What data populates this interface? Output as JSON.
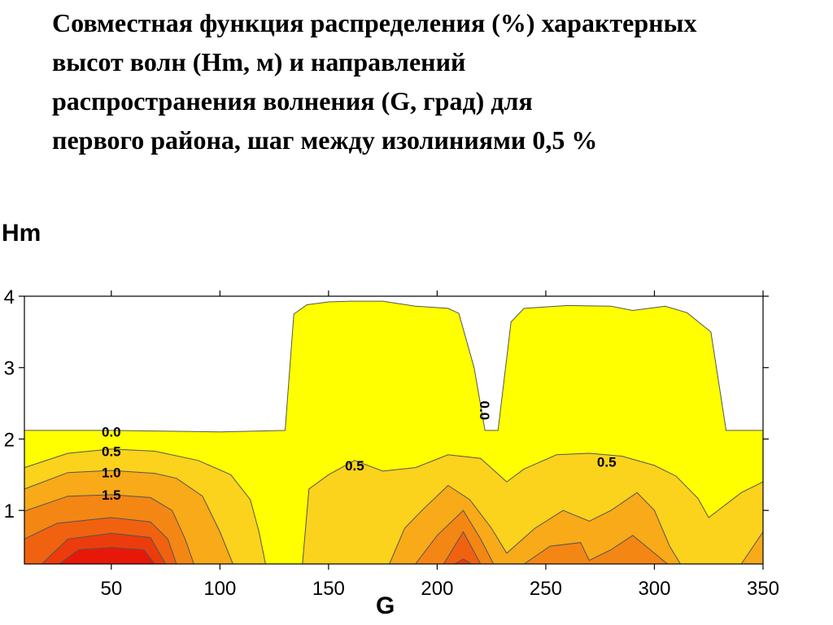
{
  "title_lines": [
    "Совместная функция распределения (%) характерных",
    "высот волн (Hm, м) и направлений",
    "распространения волнения (G, град) для",
    "первого района, шаг между изолиниями 0,5 %"
  ],
  "chart_data": {
    "type": "contour",
    "title": "Совместная функция распределения (%) характерных высот волн (Hm, м) и направлений распространения волнения (G, град) для первого района, шаг между изолиниями 0,5 %",
    "xlabel": "G",
    "ylabel": "Hm",
    "xlim": [
      10,
      350
    ],
    "ylim": [
      0.25,
      4.0
    ],
    "x_ticks": [
      50,
      100,
      150,
      200,
      250,
      300,
      350
    ],
    "y_ticks": [
      1,
      2,
      3,
      4
    ],
    "contour_step": 0.5,
    "contour_labels": [
      {
        "value": "0.0",
        "x": 50,
        "y": 2.1
      },
      {
        "value": "0.5",
        "x": 50,
        "y": 1.83
      },
      {
        "value": "1.0",
        "x": 50,
        "y": 1.53
      },
      {
        "value": "1.5",
        "x": 50,
        "y": 1.22
      },
      {
        "value": "0.5",
        "x": 162,
        "y": 1.63
      },
      {
        "value": "0.0",
        "x": 222,
        "y": 2.4
      },
      {
        "value": "0.5",
        "x": 278,
        "y": 1.68
      }
    ],
    "levels": [
      {
        "level": 0.0,
        "color": "#ffff00",
        "outline": [
          [
            10,
            2.12
          ],
          [
            50,
            2.12
          ],
          [
            100,
            2.1
          ],
          [
            130,
            2.12
          ],
          [
            134,
            3.75
          ],
          [
            140,
            3.88
          ],
          [
            150,
            3.92
          ],
          [
            160,
            3.93
          ],
          [
            175,
            3.93
          ],
          [
            190,
            3.86
          ],
          [
            196,
            3.85
          ],
          [
            205,
            3.83
          ],
          [
            210,
            3.76
          ],
          [
            217,
            3.0
          ],
          [
            222,
            2.12
          ],
          [
            228,
            2.12
          ],
          [
            234,
            3.64
          ],
          [
            240,
            3.83
          ],
          [
            260,
            3.87
          ],
          [
            280,
            3.86
          ],
          [
            290,
            3.8
          ],
          [
            305,
            3.86
          ],
          [
            315,
            3.77
          ],
          [
            326,
            3.5
          ],
          [
            333,
            2.12
          ],
          [
            350,
            2.12
          ],
          [
            350,
            0.25
          ],
          [
            10,
            0.25
          ]
        ]
      },
      {
        "level": 0.5,
        "color": "#fbd21c",
        "outlines": [
          [
            [
              10,
              1.6
            ],
            [
              30,
              1.8
            ],
            [
              50,
              1.86
            ],
            [
              70,
              1.83
            ],
            [
              90,
              1.7
            ],
            [
              105,
              1.5
            ],
            [
              114,
              1.15
            ],
            [
              118,
              0.7
            ],
            [
              121,
              0.25
            ],
            [
              10,
              0.25
            ]
          ],
          [
            [
              138,
              0.25
            ],
            [
              141,
              1.3
            ],
            [
              150,
              1.5
            ],
            [
              162,
              1.7
            ],
            [
              175,
              1.55
            ],
            [
              190,
              1.6
            ],
            [
              205,
              1.78
            ],
            [
              220,
              1.73
            ],
            [
              232,
              1.4
            ],
            [
              240,
              1.58
            ],
            [
              255,
              1.78
            ],
            [
              270,
              1.8
            ],
            [
              285,
              1.76
            ],
            [
              300,
              1.63
            ],
            [
              310,
              1.48
            ],
            [
              320,
              1.17
            ],
            [
              325,
              0.9
            ],
            [
              340,
              1.25
            ],
            [
              350,
              1.4
            ],
            [
              350,
              0.25
            ]
          ]
        ]
      },
      {
        "level": 1.0,
        "color": "#f8aa18",
        "outlines": [
          [
            [
              10,
              1.3
            ],
            [
              30,
              1.53
            ],
            [
              50,
              1.56
            ],
            [
              70,
              1.52
            ],
            [
              80,
              1.45
            ],
            [
              92,
              1.2
            ],
            [
              100,
              0.7
            ],
            [
              106,
              0.25
            ],
            [
              10,
              0.25
            ]
          ],
          [
            [
              178,
              0.25
            ],
            [
              185,
              0.75
            ],
            [
              193,
              1.0
            ],
            [
              205,
              1.35
            ],
            [
              215,
              1.15
            ],
            [
              225,
              0.75
            ],
            [
              232,
              0.4
            ],
            [
              245,
              0.75
            ],
            [
              258,
              1.0
            ],
            [
              270,
              0.85
            ],
            [
              280,
              1.0
            ],
            [
              292,
              1.25
            ],
            [
              300,
              1.0
            ],
            [
              307,
              0.5
            ],
            [
              312,
              0.25
            ]
          ],
          [
            [
              340,
              0.25
            ],
            [
              350,
              0.7
            ],
            [
              350,
              0.25
            ]
          ]
        ]
      },
      {
        "level": 1.5,
        "color": "#f48614",
        "outlines": [
          [
            [
              10,
              0.99
            ],
            [
              30,
              1.2
            ],
            [
              50,
              1.22
            ],
            [
              68,
              1.18
            ],
            [
              78,
              1.0
            ],
            [
              84,
              0.6
            ],
            [
              88,
              0.25
            ],
            [
              10,
              0.25
            ]
          ],
          [
            [
              190,
              0.25
            ],
            [
              200,
              0.65
            ],
            [
              212,
              1.0
            ],
            [
              220,
              0.6
            ],
            [
              226,
              0.25
            ]
          ],
          [
            [
              240,
              0.25
            ],
            [
              252,
              0.5
            ],
            [
              266,
              0.55
            ],
            [
              270,
              0.3
            ],
            [
              280,
              0.45
            ],
            [
              290,
              0.65
            ],
            [
              300,
              0.4
            ],
            [
              306,
              0.25
            ]
          ]
        ]
      },
      {
        "level": 2.0,
        "color": "#f06210",
        "outlines": [
          [
            [
              10,
              0.6
            ],
            [
              25,
              0.82
            ],
            [
              50,
              0.9
            ],
            [
              68,
              0.84
            ],
            [
              76,
              0.6
            ],
            [
              80,
              0.25
            ],
            [
              10,
              0.25
            ]
          ],
          [
            [
              203,
              0.25
            ],
            [
              212,
              0.7
            ],
            [
              220,
              0.25
            ]
          ]
        ]
      },
      {
        "level": 2.5,
        "color": "#ec3c0c",
        "outlines": [
          [
            [
              18,
              0.25
            ],
            [
              30,
              0.6
            ],
            [
              50,
              0.68
            ],
            [
              68,
              0.62
            ],
            [
              75,
              0.25
            ]
          ],
          [
            [
              208,
              0.25
            ],
            [
              212,
              0.32
            ],
            [
              216,
              0.25
            ]
          ]
        ]
      },
      {
        "level": 3.0,
        "color": "#e81808",
        "outlines": [
          [
            [
              26,
              0.25
            ],
            [
              35,
              0.45
            ],
            [
              50,
              0.48
            ],
            [
              65,
              0.45
            ],
            [
              70,
              0.25
            ]
          ]
        ]
      }
    ]
  }
}
